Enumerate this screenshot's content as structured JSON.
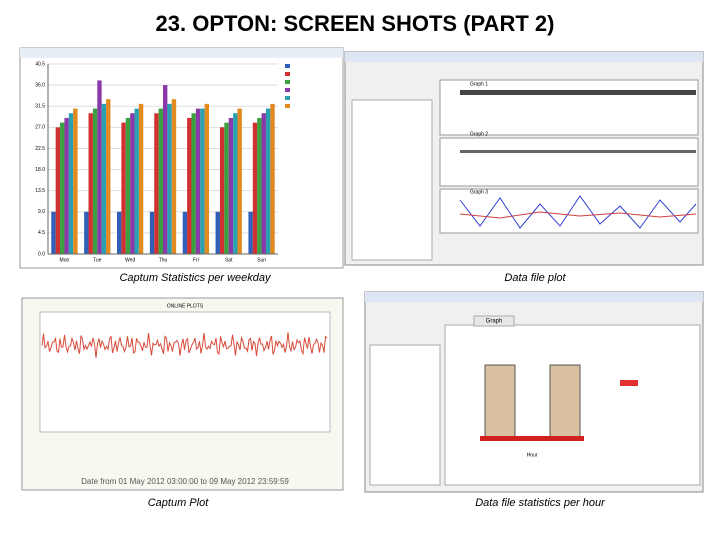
{
  "title": "23. OPTON: SCREEN SHOTS (PART 2)",
  "screenshots": [
    {
      "caption": "Captum Statistics per weekday",
      "chart": {
        "categories": [
          "Mon",
          "Tue",
          "Wed",
          "Thu",
          "Fri",
          "Sat",
          "Sun"
        ],
        "ylim": [
          0,
          40.5
        ],
        "yticks": [
          {
            "value": 0,
            "label": "0.0"
          },
          4.5,
          {
            "value": 9,
            "label": "9.0"
          },
          13.5,
          {
            "value": 18,
            "label": "18.0"
          },
          22.5,
          {
            "value": 27,
            "label": "27.0"
          },
          31.5,
          {
            "value": 36,
            "label": "36.0"
          },
          40.5
        ],
        "series": [
          {
            "color": "#2f5fb8",
            "values": [
              9,
              9,
              9,
              9,
              9,
              9,
              9
            ]
          },
          {
            "color": "#d03030",
            "values": [
              27,
              30,
              28,
              30,
              29,
              27,
              28
            ]
          },
          {
            "color": "#3aa040",
            "values": [
              28,
              31,
              29,
              31,
              30,
              28,
              29
            ]
          },
          {
            "color": "#8a3aa8",
            "values": [
              29,
              37,
              30,
              36,
              31,
              29,
              30
            ]
          },
          {
            "color": "#2aa0b0",
            "values": [
              30,
              32,
              31,
              32,
              31,
              30,
              31
            ]
          },
          {
            "color": "#e08a20",
            "values": [
              31,
              33,
              32,
              33,
              32,
              31,
              32
            ]
          }
        ]
      }
    },
    {
      "caption": "Data file plot",
      "graphs": [
        "Graph 1",
        "Graph 2",
        "Graph 3"
      ]
    },
    {
      "caption": "Captum Plot",
      "plot_title": "ONLINE PLOTS",
      "footer": "Date from 01 May 2012 03:00:00 to 09 May 2012 23:59:59"
    },
    {
      "caption": "Data file statistics per hour",
      "tab": "Graph",
      "x_label": "Hour"
    }
  ]
}
